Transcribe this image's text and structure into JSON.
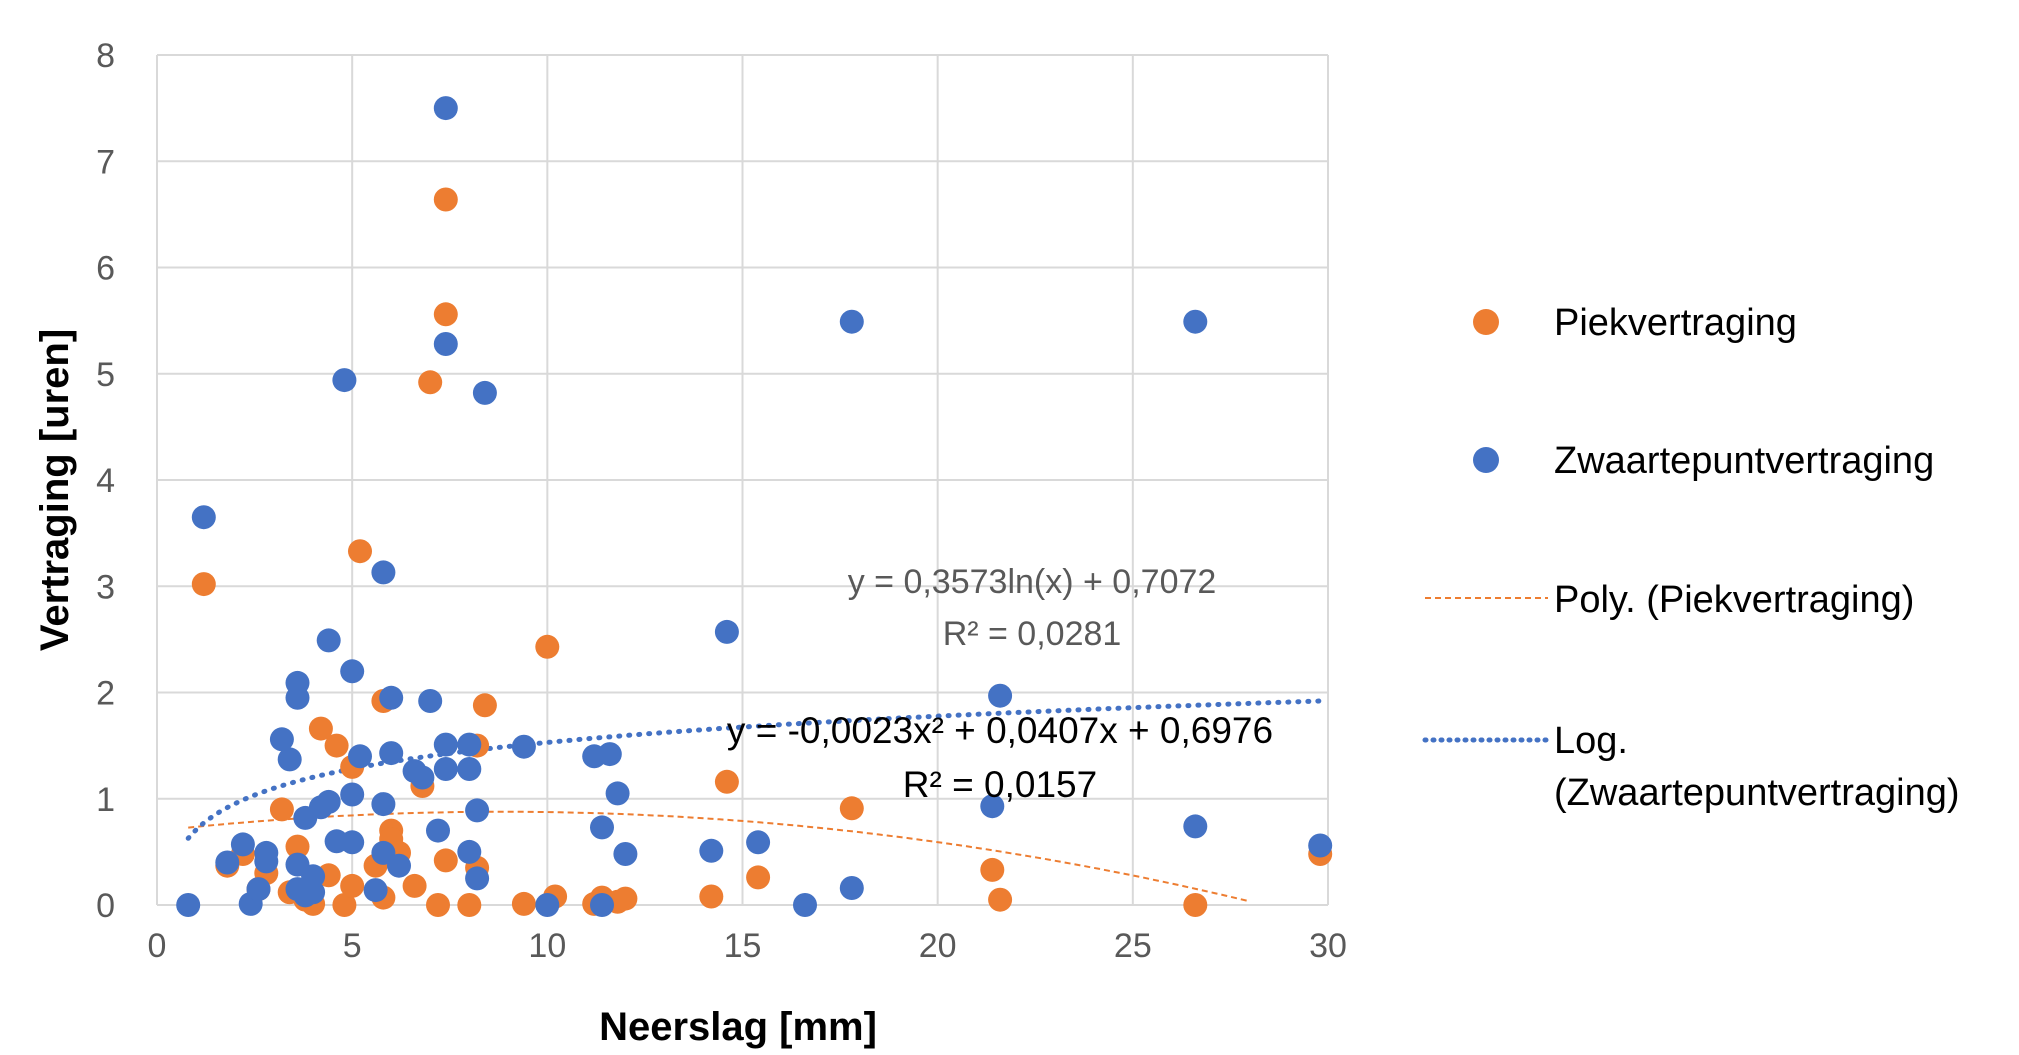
{
  "chart_data": {
    "type": "scatter",
    "xlabel": "Neerslag [mm]",
    "ylabel": "Vertraging [uren]",
    "xlim": [
      0,
      30
    ],
    "ylim": [
      0,
      8
    ],
    "x_ticks": [
      "0",
      "5",
      "10",
      "15",
      "20",
      "25",
      "30"
    ],
    "y_ticks": [
      "0",
      "1",
      "2",
      "3",
      "4",
      "5",
      "6",
      "7",
      "8"
    ],
    "grid": true,
    "legend_position": "right",
    "series": [
      {
        "name": "Piekvertraging",
        "color": "#ED7D31",
        "points": [
          [
            1.2,
            3.02
          ],
          [
            1.8,
            0.37
          ],
          [
            2.2,
            0.48
          ],
          [
            2.6,
            0.15
          ],
          [
            2.8,
            0.3
          ],
          [
            3.2,
            0.9
          ],
          [
            3.4,
            0.12
          ],
          [
            3.6,
            0.55
          ],
          [
            3.8,
            0.05
          ],
          [
            4.0,
            0.01
          ],
          [
            4.2,
            1.66
          ],
          [
            4.4,
            0.28
          ],
          [
            4.6,
            1.5
          ],
          [
            4.8,
            0.0
          ],
          [
            5.0,
            0.18
          ],
          [
            5.0,
            1.3
          ],
          [
            5.2,
            3.33
          ],
          [
            5.6,
            0.37
          ],
          [
            5.8,
            1.92
          ],
          [
            5.8,
            0.07
          ],
          [
            6.0,
            0.7
          ],
          [
            6.0,
            0.62
          ],
          [
            6.2,
            0.49
          ],
          [
            6.6,
            0.18
          ],
          [
            6.8,
            1.12
          ],
          [
            7.0,
            4.92
          ],
          [
            7.2,
            0.0
          ],
          [
            7.4,
            0.42
          ],
          [
            7.4,
            5.56
          ],
          [
            7.4,
            6.64
          ],
          [
            8.0,
            0.0
          ],
          [
            8.2,
            1.5
          ],
          [
            8.2,
            0.35
          ],
          [
            8.4,
            1.88
          ],
          [
            9.4,
            0.01
          ],
          [
            10.0,
            2.43
          ],
          [
            10.2,
            0.08
          ],
          [
            11.2,
            0.01
          ],
          [
            11.4,
            0.07
          ],
          [
            11.8,
            0.03
          ],
          [
            12.0,
            0.06
          ],
          [
            14.2,
            0.08
          ],
          [
            14.6,
            1.16
          ],
          [
            15.4,
            0.26
          ],
          [
            17.8,
            0.91
          ],
          [
            21.4,
            0.33
          ],
          [
            21.6,
            0.05
          ],
          [
            26.6,
            0.0
          ],
          [
            29.8,
            0.48
          ]
        ]
      },
      {
        "name": "Zwaartepuntvertraging",
        "color": "#4472C4",
        "points": [
          [
            0.8,
            0.0
          ],
          [
            1.2,
            3.65
          ],
          [
            1.8,
            0.4
          ],
          [
            2.2,
            0.57
          ],
          [
            2.4,
            0.01
          ],
          [
            2.6,
            0.15
          ],
          [
            2.8,
            0.49
          ],
          [
            2.8,
            0.41
          ],
          [
            3.2,
            1.56
          ],
          [
            3.4,
            1.37
          ],
          [
            3.6,
            2.09
          ],
          [
            3.6,
            1.95
          ],
          [
            3.6,
            0.38
          ],
          [
            3.6,
            0.15
          ],
          [
            3.8,
            0.82
          ],
          [
            3.8,
            0.09
          ],
          [
            4.0,
            0.27
          ],
          [
            4.0,
            0.12
          ],
          [
            4.2,
            0.92
          ],
          [
            4.4,
            0.97
          ],
          [
            4.4,
            2.49
          ],
          [
            4.6,
            0.6
          ],
          [
            4.8,
            4.94
          ],
          [
            5.0,
            2.2
          ],
          [
            5.0,
            1.04
          ],
          [
            5.0,
            0.59
          ],
          [
            5.2,
            1.4
          ],
          [
            5.6,
            0.14
          ],
          [
            5.8,
            3.13
          ],
          [
            5.8,
            0.95
          ],
          [
            5.8,
            0.49
          ],
          [
            6.0,
            1.95
          ],
          [
            6.0,
            1.43
          ],
          [
            6.2,
            0.37
          ],
          [
            6.6,
            1.26
          ],
          [
            6.8,
            1.2
          ],
          [
            7.0,
            1.92
          ],
          [
            7.2,
            0.7
          ],
          [
            7.4,
            1.51
          ],
          [
            7.4,
            1.28
          ],
          [
            7.4,
            5.28
          ],
          [
            7.4,
            7.5
          ],
          [
            8.0,
            1.51
          ],
          [
            8.0,
            1.28
          ],
          [
            8.0,
            0.5
          ],
          [
            8.2,
            0.89
          ],
          [
            8.2,
            0.25
          ],
          [
            8.4,
            4.82
          ],
          [
            9.4,
            1.49
          ],
          [
            10.0,
            0.0
          ],
          [
            11.2,
            1.4
          ],
          [
            11.4,
            0.73
          ],
          [
            11.4,
            0.0
          ],
          [
            11.6,
            1.42
          ],
          [
            11.8,
            1.05
          ],
          [
            12.0,
            0.48
          ],
          [
            14.2,
            0.51
          ],
          [
            14.6,
            2.57
          ],
          [
            15.4,
            0.59
          ],
          [
            16.6,
            0.0
          ],
          [
            17.8,
            0.16
          ],
          [
            17.8,
            5.49
          ],
          [
            21.4,
            0.93
          ],
          [
            21.6,
            1.97
          ],
          [
            26.6,
            0.74
          ],
          [
            26.6,
            5.49
          ],
          [
            29.8,
            0.56
          ]
        ]
      }
    ],
    "trendlines": [
      {
        "name": "Poly. (Piekvertraging)",
        "kind": "polynomial",
        "coefficients": [
          -0.0023,
          0.0407,
          0.6976
        ],
        "x_range": [
          0.8,
          28
        ],
        "color": "#ED7D31",
        "equation": "y = -0,0023x² + 0,0407x + 0,6976",
        "r2": "R² = 0,0157"
      },
      {
        "name": "Log. (Zwaartepuntvertraging)",
        "name_line2": "(Zwaartepuntvertraging)",
        "name_line1": "Log.",
        "kind": "logarithmic",
        "coefficients": [
          0.3573,
          0.7072
        ],
        "x_range": [
          0.8,
          29.8
        ],
        "color": "#4472C4",
        "equation": "y = 0,3573ln(x) + 0,7072",
        "r2": "R² = 0,0281"
      }
    ]
  }
}
